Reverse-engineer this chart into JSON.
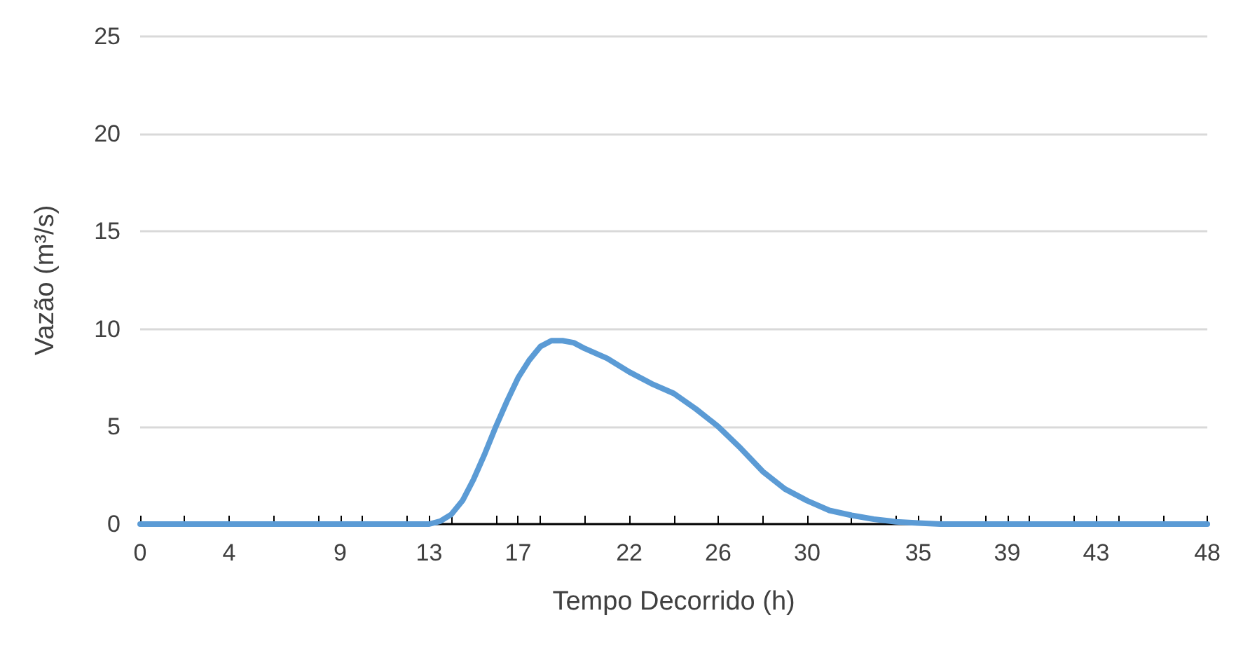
{
  "chart_data": {
    "type": "line",
    "xlabel": "Tempo Decorrido (h)",
    "ylabel": "Vazão (m³/s)",
    "x": [
      0,
      6,
      12,
      13,
      13.5,
      14,
      14.5,
      15,
      15.5,
      16,
      16.5,
      17,
      17.5,
      18,
      18.5,
      19,
      19.5,
      20,
      21,
      22,
      23,
      24,
      25,
      26,
      27,
      28,
      29,
      30,
      31,
      32,
      33,
      34,
      35,
      36,
      42,
      48
    ],
    "series": [
      {
        "color": "#5b9bd5",
        "values": [
          0,
          0,
          0,
          0,
          0.15,
          0.5,
          1.2,
          2.3,
          3.6,
          5.0,
          6.3,
          7.5,
          8.4,
          9.1,
          9.4,
          9.4,
          9.3,
          9.0,
          8.5,
          7.8,
          7.2,
          6.7,
          5.9,
          5.0,
          3.9,
          2.7,
          1.8,
          1.2,
          0.7,
          0.45,
          0.25,
          0.12,
          0.05,
          0,
          0,
          0
        ]
      }
    ],
    "xlim": [
      0,
      48
    ],
    "xticks": [
      0,
      4,
      9,
      13,
      17,
      22,
      26,
      30,
      35,
      39,
      43,
      48,
      {
        "value": 2,
        "label": null
      },
      {
        "value": 4,
        "label": null
      },
      {
        "value": 6,
        "label": null
      },
      {
        "value": 8,
        "label": null
      },
      {
        "value": 10,
        "label": null
      },
      {
        "value": 12,
        "label": null
      },
      {
        "value": 14,
        "label": null
      },
      {
        "value": 16,
        "label": null
      },
      {
        "value": 18,
        "label": null
      },
      {
        "value": 20,
        "label": null
      },
      {
        "value": 22,
        "label": null
      },
      {
        "value": 24,
        "label": null
      },
      {
        "value": 26,
        "label": null
      },
      {
        "value": 28,
        "label": null
      },
      {
        "value": 30,
        "label": null
      },
      {
        "value": 32,
        "label": null
      },
      {
        "value": 34,
        "label": null
      },
      {
        "value": 36,
        "label": null
      },
      {
        "value": 38,
        "label": null
      },
      {
        "value": 40,
        "label": null
      },
      {
        "value": 42,
        "label": null
      },
      {
        "value": 44,
        "label": null
      },
      {
        "value": 46,
        "label": null
      }
    ],
    "ylim": [
      0,
      25
    ],
    "yticks": [
      0,
      5,
      10,
      15,
      20,
      25
    ],
    "grid": "y",
    "marker": "none",
    "line_style": "solid"
  }
}
